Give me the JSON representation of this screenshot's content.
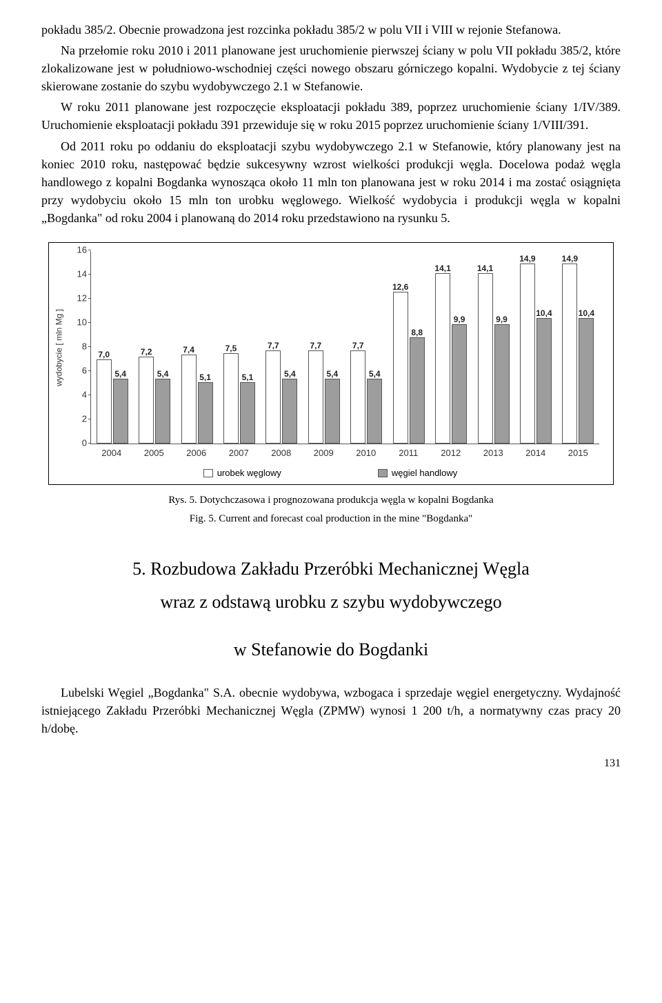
{
  "paragraphs": {
    "p1": "pokładu 385/2. Obecnie prowadzona jest rozcinka pokładu 385/2 w polu VII i VIII w rejonie Stefanowa.",
    "p2": "Na przełomie roku 2010 i 2011 planowane jest uruchomienie pierwszej ściany w polu VII pokładu 385/2, które zlokalizowane jest w południowo-wschodniej części nowego obszaru górniczego kopalni. Wydobycie z tej ściany skierowane zostanie do szybu wydobywczego 2.1 w Stefanowie.",
    "p3": "W roku 2011 planowane jest rozpoczęcie eksploatacji pokładu 389, poprzez uruchomienie ściany 1/IV/389. Uruchomienie eksploatacji pokładu 391 przewiduje się w roku 2015 poprzez uruchomienie ściany 1/VIII/391.",
    "p4": "Od 2011 roku po oddaniu do eksploatacji szybu wydobywczego 2.1 w Stefanowie, który planowany jest na koniec 2010 roku, następować będzie sukcesywny wzrost wielkości produkcji węgla. Docelowa podaż węgla handlowego z kopalni Bogdanka wynosząca około 11 mln ton planowana jest w roku 2014 i ma zostać osiągnięta przy wydobyciu około 15 mln ton urobku węglowego. Wielkość wydobycia i produkcji węgla w kopalni „Bogdanka\" od roku 2004 i planowaną do 2014 roku przedstawiono na rysunku 5."
  },
  "chart": {
    "type": "bar",
    "y_axis_label": "wydobycie [ mln Mg ]",
    "y_max": 16,
    "y_tick_step": 2,
    "categories": [
      "2004",
      "2005",
      "2006",
      "2007",
      "2008",
      "2009",
      "2010",
      "2011",
      "2012",
      "2013",
      "2014",
      "2015"
    ],
    "series_a_name": "urobek węglowy",
    "series_b_name": "węgiel handlowy",
    "series_a_color": "#ffffff",
    "series_b_color": "#9d9d9d",
    "border_color": "#555555",
    "background_color": "#ffffff",
    "series_a_values": [
      "7,0",
      "7,2",
      "7,4",
      "7,5",
      "7,7",
      "7,7",
      "7,7",
      "12,6",
      "14,1",
      "14,1",
      "14,9",
      "14,9"
    ],
    "series_b_values": [
      "5,4",
      "5,4",
      "5,1",
      "5,1",
      "5,4",
      "5,4",
      "5,4",
      "8,8",
      "9,9",
      "9,9",
      "10,4",
      "10,4"
    ],
    "label_fontsize": 12,
    "tick_fontsize": 13
  },
  "captions": {
    "pl": "Rys. 5. Dotychczasowa i prognozowana produkcja węgla w kopalni Bogdanka",
    "en": "Fig. 5. Current and forecast coal production in the mine \"Bogdanka\""
  },
  "section": {
    "num": "5.",
    "title_l1": "Rozbudowa Zakładu Przeróbki Mechanicznej Węgla",
    "title_l2": "wraz z odstawą urobku z szybu wydobywczego",
    "title_l3": "w Stefanowie do Bogdanki"
  },
  "paragraphs2": {
    "p5": "Lubelski Węgiel „Bogdanka\" S.A. obecnie wydobywa, wzbogaca i sprzedaje węgiel energetyczny. Wydajność istniejącego Zakładu Przeróbki Mechanicznej Węgla (ZPMW) wynosi 1 200 t/h, a normatywny czas pracy 20 h/dobę."
  },
  "page_number": "131"
}
